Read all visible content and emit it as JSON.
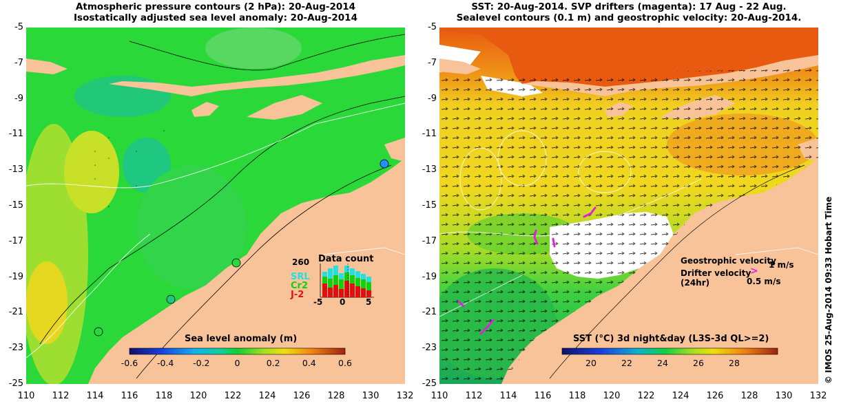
{
  "left": {
    "title_line1": "Atmospheric pressure contours (2 hPa): 20-Aug-2014",
    "title_line2": "Isostatically adjusted sea level anomaly: 20-Aug-2014",
    "colorbar_label": "Sea level anomaly (m)",
    "colorbar_ticks": [
      "-0.6",
      "-0.4",
      "-0.2",
      "0",
      "0.2",
      "0.4",
      "0.6"
    ],
    "inset": {
      "title": "Data count",
      "ymax": "260",
      "xticks": [
        "-5",
        "0",
        "5"
      ],
      "legend": [
        {
          "name": "SRL",
          "color": "#22e0e0"
        },
        {
          "name": "Cr2",
          "color": "#10d010"
        },
        {
          "name": "J-2",
          "color": "#e01010"
        }
      ]
    }
  },
  "right": {
    "title_line1": "SST: 20-Aug-2014. SVP drifters (magenta): 17 Aug - 22 Aug.",
    "title_line2": "Sealevel contours (0.1 m) and geostrophic velocity: 20-Aug-2014.",
    "colorbar_label": "SST (°C) 3d night&day (L3S-3d QL>=2)",
    "colorbar_ticks": [
      "20",
      "22",
      "24",
      "26",
      "28"
    ],
    "legend": {
      "geostrophic_label": "Geostrophic velocity",
      "geostrophic_scale": "1 m/s",
      "drifter_label": "Drifter velocity",
      "drifter_sub": "(24hr)",
      "drifter_scale": "0.5 m/s"
    }
  },
  "axes": {
    "yticks": [
      "-5",
      "-7",
      "-9",
      "-11",
      "-13",
      "-15",
      "-17",
      "-19",
      "-21",
      "-23",
      "-25"
    ],
    "xticks": [
      "110",
      "112",
      "114",
      "116",
      "118",
      "120",
      "122",
      "124",
      "126",
      "128",
      "130",
      "132"
    ]
  },
  "credit": "© IMOS 25-Aug-2014 09:33 Hobart Time",
  "colors": {
    "land": "#f9c39a",
    "ssh_ocean": "#2ad83a",
    "sst_ocean": "#f0d020",
    "sst_cool": "#3ad040"
  }
}
